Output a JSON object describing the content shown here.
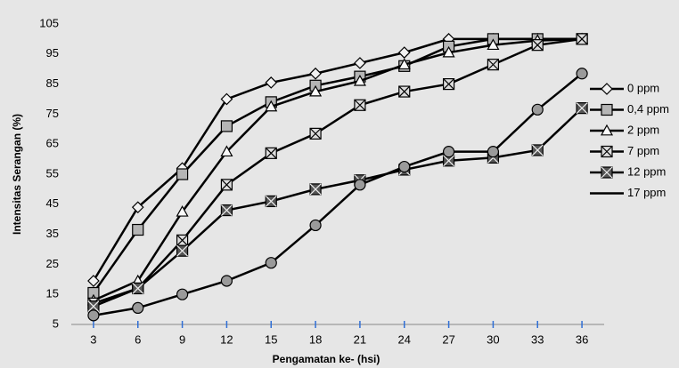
{
  "chart_data": {
    "type": "line",
    "xlabel": "Pengamatan ke- (hsi)",
    "ylabel": "Intensitas Serangan (%)",
    "x": [
      3,
      6,
      9,
      12,
      15,
      18,
      21,
      24,
      27,
      30,
      33,
      36
    ],
    "xlim": [
      1.5,
      37.5
    ],
    "xticks": [
      3,
      6,
      9,
      12,
      15,
      18,
      21,
      24,
      27,
      30,
      33,
      36
    ],
    "ylim": [
      5,
      105
    ],
    "yticks": [
      5,
      15,
      25,
      35,
      45,
      55,
      65,
      75,
      85,
      95,
      105
    ],
    "grid": false,
    "legend": "right",
    "series": [
      {
        "name": "0 ppm",
        "color": "#000000",
        "marker": "diamond",
        "values": [
          19.5,
          44,
          57,
          80,
          85.5,
          88.5,
          92,
          95.5,
          100,
          100,
          100,
          100
        ]
      },
      {
        "name": "0,4 ppm",
        "color": "#000000",
        "marker": "square",
        "values": [
          15.5,
          36.5,
          55,
          71,
          79,
          84.5,
          87.5,
          91,
          97.5,
          100,
          100,
          100
        ]
      },
      {
        "name": "2 ppm",
        "color": "#000000",
        "marker": "triangle",
        "values": [
          13,
          19.5,
          42.5,
          62.5,
          77.5,
          82.5,
          86,
          91.5,
          95.5,
          98,
          99.5,
          100
        ]
      },
      {
        "name": "7 ppm",
        "color": "#000000",
        "marker": "square-x",
        "values": [
          12,
          17,
          33,
          51.5,
          62,
          68.5,
          78,
          82.5,
          85,
          91.5,
          98,
          100
        ]
      },
      {
        "name": "12 ppm",
        "color": "#000000",
        "marker": "square-x-dark",
        "values": [
          11,
          17,
          29.5,
          43,
          46,
          50,
          53,
          56.5,
          59.5,
          60.5,
          63,
          77
        ]
      },
      {
        "name": "17 ppm",
        "color": "#000000",
        "marker": "circle",
        "values": [
          8,
          10.5,
          15,
          19.5,
          25.5,
          38,
          51.5,
          57.5,
          62.5,
          62.5,
          76.5,
          88.5
        ]
      }
    ]
  }
}
